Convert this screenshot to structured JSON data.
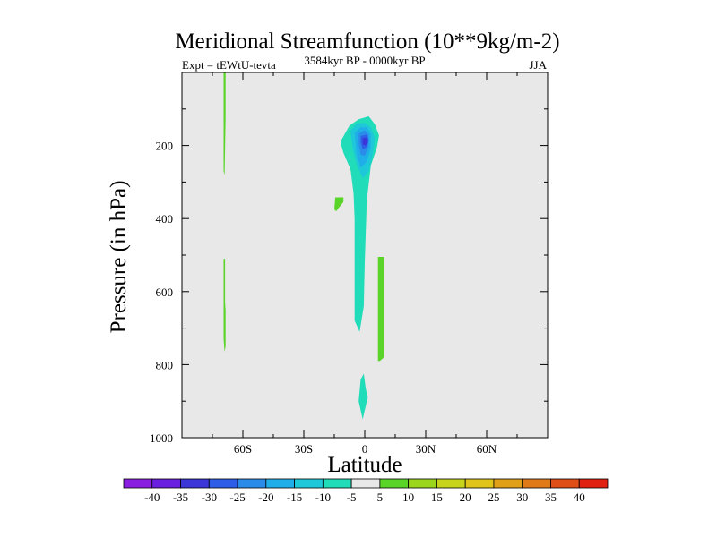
{
  "chart_data": {
    "type": "contour",
    "title": "Meridional Streamfunction (10**9kg/m-2)",
    "left_label": "Expt = tEWtU-tevta",
    "center_label": "3584kyr BP - 0000kyr BP",
    "right_label": "JJA",
    "xlabel": "Latitude",
    "ylabel": "Pressure (in hPa)",
    "xlim": [
      -90,
      90
    ],
    "ylim": [
      1000,
      0
    ],
    "x_ticks": [
      {
        "value": -60,
        "label": "60S"
      },
      {
        "value": -30,
        "label": "30S"
      },
      {
        "value": 0,
        "label": "0"
      },
      {
        "value": 30,
        "label": "30N"
      },
      {
        "value": 60,
        "label": "60N"
      }
    ],
    "y_ticks": [
      {
        "value": 200,
        "label": "200"
      },
      {
        "value": 400,
        "label": "400"
      },
      {
        "value": 600,
        "label": "600"
      },
      {
        "value": 800,
        "label": "800"
      },
      {
        "value": 1000,
        "label": "1000"
      }
    ],
    "colorbar": {
      "levels": [
        "-40",
        "-35",
        "-30",
        "-25",
        "-20",
        "-15",
        "-10",
        "-5",
        "5",
        "10",
        "15",
        "20",
        "25",
        "30",
        "35",
        "40"
      ],
      "colors": [
        "#8a1ee0",
        "#6a1ee0",
        "#3c35d8",
        "#2e5ee8",
        "#2a8ce8",
        "#20aee8",
        "#1fc8d8",
        "#20dcb8",
        "#e8e8e8",
        "#5ad428",
        "#9cd61c",
        "#c8d41c",
        "#e0c41a",
        "#e0a018",
        "#e07a18",
        "#e04e18",
        "#e02010"
      ]
    },
    "background_color": "#e8e8e8",
    "regions": [
      {
        "name": "tropical-negative-cell-outer",
        "level_index": 7,
        "points": [
          [
            -10,
            170
          ],
          [
            -7.5,
            145
          ],
          [
            -3,
            128
          ],
          [
            2,
            120
          ],
          [
            5,
            142
          ],
          [
            7,
            172
          ],
          [
            6,
            205
          ],
          [
            3,
            255
          ],
          [
            1,
            350
          ],
          [
            0,
            520
          ],
          [
            -0.5,
            640
          ],
          [
            -2.5,
            710
          ],
          [
            -5,
            680
          ],
          [
            -5,
            400
          ],
          [
            -5.5,
            330
          ],
          [
            -7,
            265
          ],
          [
            -10.5,
            220
          ],
          [
            -12,
            190
          ]
        ]
      },
      {
        "name": "tropical-negative-cell-l2",
        "level_index": 6,
        "points": [
          [
            -7,
            160
          ],
          [
            -4,
            140
          ],
          [
            0,
            138
          ],
          [
            3,
            150
          ],
          [
            5,
            180
          ],
          [
            4,
            220
          ],
          [
            2,
            270
          ],
          [
            -1,
            290
          ],
          [
            -4,
            250
          ],
          [
            -6,
            205
          ]
        ]
      },
      {
        "name": "tropical-negative-cell-l3",
        "level_index": 5,
        "points": [
          [
            -5,
            165
          ],
          [
            -2,
            150
          ],
          [
            1,
            150
          ],
          [
            3,
            168
          ],
          [
            3,
            205
          ],
          [
            1,
            245
          ],
          [
            -2,
            260
          ],
          [
            -4,
            225
          ]
        ]
      },
      {
        "name": "tropical-negative-cell-l4",
        "level_index": 4,
        "points": [
          [
            -3,
            168
          ],
          [
            0,
            158
          ],
          [
            2,
            170
          ],
          [
            2,
            202
          ],
          [
            0,
            228
          ],
          [
            -2,
            225
          ],
          [
            -3,
            195
          ]
        ]
      },
      {
        "name": "tropical-negative-cell-l5",
        "level_index": 3,
        "points": [
          [
            -2,
            174
          ],
          [
            1,
            170
          ],
          [
            2,
            185
          ],
          [
            1,
            205
          ],
          [
            -1,
            210
          ],
          [
            -2,
            192
          ]
        ]
      },
      {
        "name": "tropical-negative-cell-core",
        "level_index": 2,
        "points": [
          [
            -1,
            180
          ],
          [
            1,
            178
          ],
          [
            1.5,
            190
          ],
          [
            0.5,
            200
          ],
          [
            -1,
            197
          ]
        ]
      },
      {
        "name": "lower-negative-blob",
        "level_index": 7,
        "points": [
          [
            -2,
            840
          ],
          [
            -0.5,
            825
          ],
          [
            0.5,
            865
          ],
          [
            1.5,
            890
          ],
          [
            0,
            925
          ],
          [
            -1,
            950
          ],
          [
            -3,
            900
          ]
        ]
      },
      {
        "name": "positive-strip-right",
        "level_index": 9,
        "points": [
          [
            6.5,
            505
          ],
          [
            9.5,
            505
          ],
          [
            9.5,
            780
          ],
          [
            7.5,
            790
          ],
          [
            6.5,
            790
          ]
        ]
      },
      {
        "name": "positive-blob-left",
        "level_index": 9,
        "points": [
          [
            -14.5,
            342
          ],
          [
            -10.5,
            342
          ],
          [
            -10.5,
            355
          ],
          [
            -13,
            372
          ],
          [
            -14,
            380
          ],
          [
            -15,
            375
          ]
        ]
      },
      {
        "name": "positive-strip-far-left-upper",
        "level_index": 9,
        "points": [
          [
            -69.5,
            0
          ],
          [
            -68.5,
            0
          ],
          [
            -68.5,
            125
          ],
          [
            -69,
            280
          ],
          [
            -69.5,
            270
          ]
        ]
      },
      {
        "name": "positive-strip-far-left-lower",
        "level_index": 9,
        "points": [
          [
            -69.5,
            510
          ],
          [
            -68.8,
            510
          ],
          [
            -68.8,
            630
          ],
          [
            -68.5,
            650
          ],
          [
            -68.5,
            750
          ],
          [
            -69,
            765
          ],
          [
            -69.5,
            730
          ]
        ]
      }
    ]
  }
}
